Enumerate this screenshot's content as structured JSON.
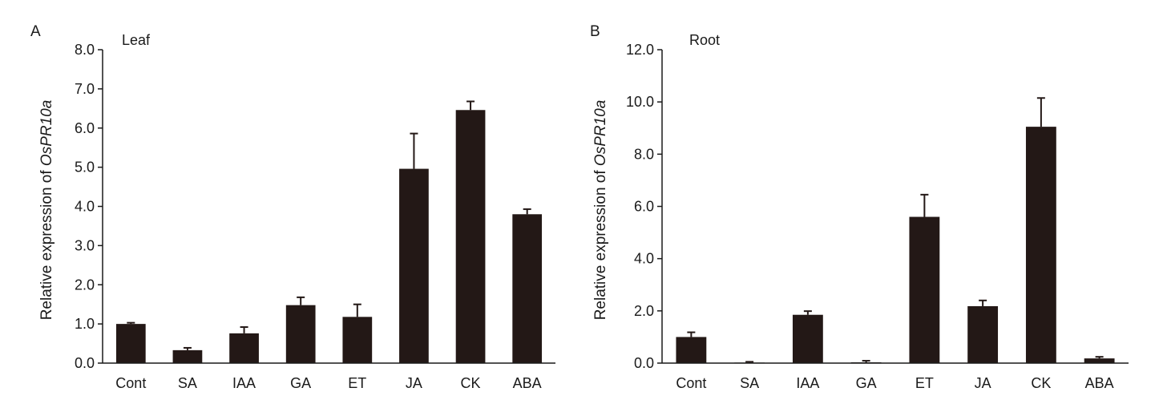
{
  "chart_data": [
    {
      "type": "bar",
      "panel_letter": "A",
      "title": "Leaf",
      "ylabel_prefix": "Relative expression of ",
      "ylabel_gene": "OsPR10a",
      "categories": [
        "Cont",
        "SA",
        "IAA",
        "GA",
        "ET",
        "JA",
        "CK",
        "ABA"
      ],
      "values": [
        1.0,
        0.33,
        0.76,
        1.48,
        1.18,
        4.96,
        6.46,
        3.8
      ],
      "errors": [
        0.03,
        0.06,
        0.16,
        0.2,
        0.32,
        0.9,
        0.22,
        0.13
      ],
      "ylim": [
        0,
        8
      ],
      "yticks": [
        "0.0",
        "1.0",
        "2.0",
        "3.0",
        "4.0",
        "5.0",
        "6.0",
        "7.0",
        "8.0"
      ],
      "bar_color": "#231816",
      "grid": false
    },
    {
      "type": "bar",
      "panel_letter": "B",
      "title": "Root",
      "ylabel_prefix": "Relative expression of ",
      "ylabel_gene": "OsPR10a",
      "categories": [
        "Cont",
        "SA",
        "IAA",
        "GA",
        "ET",
        "JA",
        "CK",
        "ABA"
      ],
      "values": [
        1.0,
        0.02,
        1.85,
        0.03,
        5.6,
        2.18,
        9.05,
        0.18
      ],
      "errors": [
        0.18,
        0.03,
        0.14,
        0.06,
        0.85,
        0.22,
        1.1,
        0.06
      ],
      "ylim": [
        0,
        12
      ],
      "yticks": [
        "0.0",
        "2.0",
        "4.0",
        "6.0",
        "8.0",
        "10.0",
        "12.0"
      ],
      "bar_color": "#231816",
      "grid": false
    }
  ]
}
